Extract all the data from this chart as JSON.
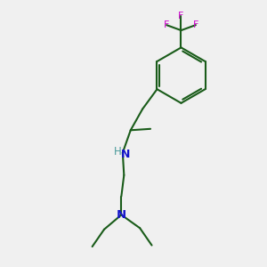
{
  "background_color": "#f0f0f0",
  "bond_color": "#1a5c1a",
  "nitrogen_color": "#1414cc",
  "fluorine_color": "#cc00cc",
  "nh_color": "#4a9a9a",
  "line_width": 1.5,
  "figsize": [
    3.0,
    3.0
  ],
  "dpi": 100,
  "xlim": [
    0,
    10
  ],
  "ylim": [
    0,
    10
  ]
}
